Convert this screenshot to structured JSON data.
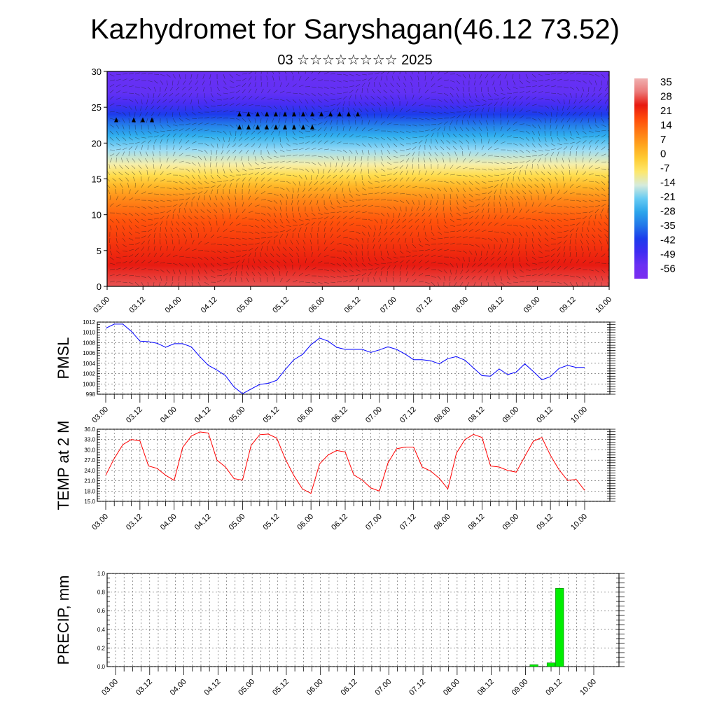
{
  "header": {
    "title": "Kazhydromet for Saryshagan(46.12 73.52)",
    "subtitle": "03 ☆☆☆☆☆☆☆☆ 2025"
  },
  "time_labels": [
    "03.00",
    "03.12",
    "04.00",
    "04.12",
    "05.00",
    "05.12",
    "06.00",
    "06.12",
    "07.00",
    "07.12",
    "08.00",
    "08.12",
    "09.00",
    "09.12",
    "10.00"
  ],
  "colors": {
    "pmsl_line": "#0000ff",
    "temp_line": "#ff0000",
    "precip_bar": "#00ee00",
    "axis": "#000000",
    "grid": "#555555"
  },
  "chart_data": [
    {
      "id": "cross_section",
      "type": "heatmap",
      "xlabel": "",
      "ylabel": "",
      "ylim": [
        0,
        30
      ],
      "yticks": [
        0,
        5,
        10,
        15,
        20,
        25,
        30
      ],
      "legend_placement": "right",
      "colorbar_labels": [
        "35",
        "28",
        "21",
        "14",
        "7",
        "0",
        "-7",
        "-14",
        "-21",
        "-28",
        "-35",
        "-42",
        "-49",
        "-56"
      ],
      "profile": {
        "height": [
          0,
          3,
          6,
          9,
          12,
          14,
          15.5,
          17,
          19,
          21,
          22.5,
          24,
          25.5,
          27,
          30
        ],
        "temperature": [
          33,
          28,
          24,
          20,
          12,
          4,
          -4,
          -10,
          -18,
          -26,
          -34,
          -42,
          -50,
          -54,
          -56
        ]
      }
    },
    {
      "id": "pmsl",
      "type": "line",
      "ylabel": "PMSL",
      "ylim": [
        998,
        1012
      ],
      "yticks": [
        998,
        1000,
        1002,
        1004,
        1006,
        1008,
        1010,
        1012
      ],
      "x_start": 0,
      "x_step": 3,
      "series": [
        {
          "values": [
            1010.8,
            1011.6,
            1011.6,
            1010.2,
            1008.3,
            1008.2,
            1007.9,
            1007.1,
            1007.8,
            1007.8,
            1007.2,
            1005.3,
            1003.6,
            1002.7,
            1001.6,
            999.4,
            998.1,
            999.0,
            999.9,
            1000.1,
            1000.7,
            1002.8,
            1004.7,
            1005.7,
            1007.6,
            1008.9,
            1008.3,
            1007.1,
            1006.7,
            1006.7,
            1006.7,
            1006.1,
            1006.6,
            1007.2,
            1006.7,
            1005.8,
            1004.7,
            1004.7,
            1004.5,
            1003.9,
            1004.9,
            1005.3,
            1004.6,
            1003.1,
            1001.6,
            1001.5,
            1002.9,
            1001.8,
            1002.3,
            1003.9,
            1002.4,
            1000.8,
            1001.4,
            1003.0,
            1003.6,
            1003.2,
            1003.2
          ]
        }
      ]
    },
    {
      "id": "temperature",
      "type": "line",
      "ylabel": "TEMP at 2 M",
      "ylim": [
        15,
        36
      ],
      "yticks": [
        "15.0",
        "18.0",
        "21.0",
        "24.0",
        "27.0",
        "30.0",
        "33.0",
        "36.0"
      ],
      "x_start": 0,
      "x_step": 3,
      "series": [
        {
          "values": [
            22.6,
            27.5,
            31.5,
            33.0,
            32.6,
            25.3,
            24.6,
            22.6,
            21.1,
            30.7,
            34.0,
            35.2,
            34.9,
            27.0,
            25.0,
            21.6,
            21.2,
            31.3,
            34.4,
            34.6,
            33.4,
            27.3,
            22.5,
            18.6,
            17.3,
            25.9,
            28.5,
            29.8,
            29.4,
            22.7,
            21.2,
            18.9,
            18.0,
            26.2,
            30.3,
            30.8,
            30.8,
            25.0,
            23.8,
            21.7,
            18.6,
            29.0,
            33.0,
            34.5,
            33.6,
            25.3,
            25.0,
            24.0,
            23.5,
            28.1,
            32.5,
            33.6,
            28.4,
            24.2,
            21.1,
            21.4,
            18.2
          ]
        }
      ]
    },
    {
      "id": "precip",
      "type": "bar",
      "ylabel": "PRECIP, mm",
      "ylim": [
        0,
        1
      ],
      "yticks": [
        "0.0",
        "0.2",
        "0.4",
        "0.6",
        "0.8",
        "1.0"
      ],
      "x_step": 3,
      "bars": [
        {
          "hour": 147,
          "value": 0.02
        },
        {
          "hour": 153,
          "value": 0.04
        },
        {
          "hour": 156,
          "value": 0.84
        }
      ]
    }
  ]
}
